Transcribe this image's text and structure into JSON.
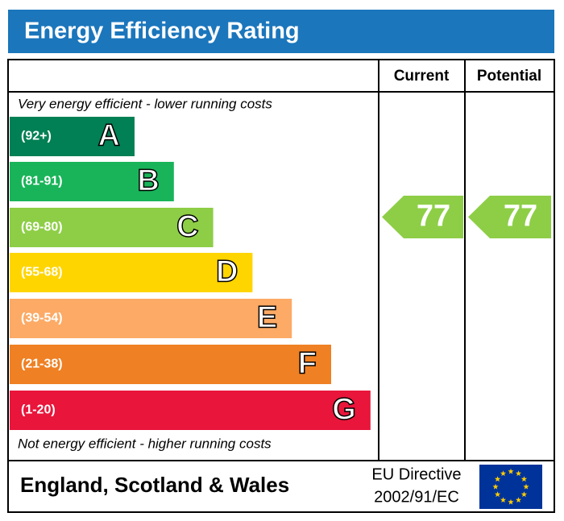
{
  "title": "Energy Efficiency Rating",
  "columns": {
    "current": "Current",
    "potential": "Potential"
  },
  "top_note": "Very energy efficient - lower running costs",
  "bottom_note": "Not energy efficient - higher running costs",
  "bands": [
    {
      "range": "(92+)",
      "letter": "A",
      "color": "#008054"
    },
    {
      "range": "(81-91)",
      "letter": "B",
      "color": "#19b459"
    },
    {
      "range": "(69-80)",
      "letter": "C",
      "color": "#8dce46"
    },
    {
      "range": "(55-68)",
      "letter": "D",
      "color": "#ffd500"
    },
    {
      "range": "(39-54)",
      "letter": "E",
      "color": "#fcaa65"
    },
    {
      "range": "(21-38)",
      "letter": "F",
      "color": "#ef8023"
    },
    {
      "range": "(1-20)",
      "letter": "G",
      "color": "#e9153b"
    }
  ],
  "ratings": {
    "current": {
      "value": 77,
      "color": "#8dce46"
    },
    "potential": {
      "value": 77,
      "color": "#8dce46"
    }
  },
  "footer": {
    "region": "England, Scotland & Wales",
    "directive_line1": "EU Directive",
    "directive_line2": "2002/91/EC"
  }
}
